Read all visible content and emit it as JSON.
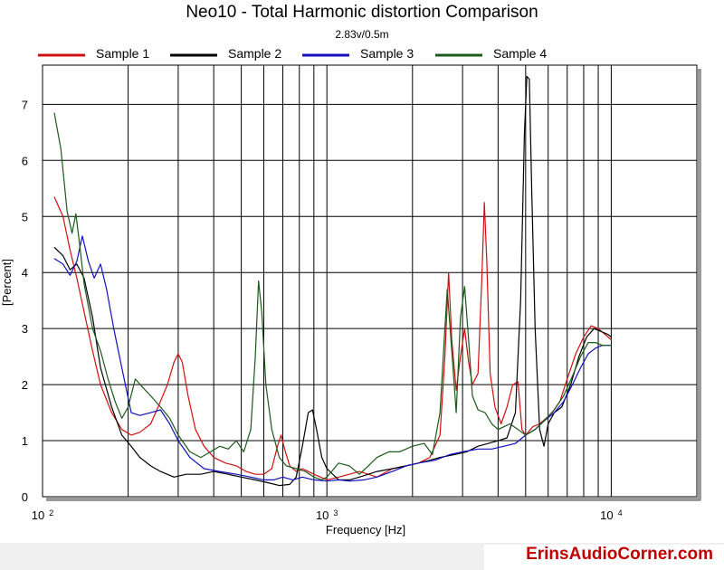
{
  "chart_data": {
    "type": "line",
    "title": "Neo10 - Total Harmonic distortion Comparison",
    "subtitle": "2.83v/0.5m",
    "xlabel": "Frequency [Hz]",
    "ylabel": "[Percent]",
    "xscale": "log",
    "xlim": [
      100,
      20000
    ],
    "ylim": [
      0,
      7.7
    ],
    "x_ticks": [
      {
        "value": 100,
        "base": "10",
        "exp": "2"
      },
      {
        "value": 1000,
        "base": "10",
        "exp": "3"
      },
      {
        "value": 10000,
        "base": "10",
        "exp": "4"
      }
    ],
    "y_ticks": [
      0,
      1,
      2,
      3,
      4,
      5,
      6,
      7
    ],
    "grid": true,
    "legend_position": "top",
    "series": [
      {
        "name": "Sample 1",
        "color": "#d01010",
        "points": [
          [
            110,
            5.35
          ],
          [
            118,
            5.0
          ],
          [
            125,
            4.4
          ],
          [
            132,
            3.9
          ],
          [
            140,
            3.3
          ],
          [
            150,
            2.6
          ],
          [
            160,
            2.0
          ],
          [
            175,
            1.5
          ],
          [
            190,
            1.2
          ],
          [
            205,
            1.1
          ],
          [
            220,
            1.15
          ],
          [
            240,
            1.3
          ],
          [
            255,
            1.6
          ],
          [
            275,
            2.0
          ],
          [
            290,
            2.4
          ],
          [
            300,
            2.55
          ],
          [
            310,
            2.4
          ],
          [
            325,
            1.8
          ],
          [
            345,
            1.2
          ],
          [
            370,
            0.9
          ],
          [
            400,
            0.7
          ],
          [
            440,
            0.6
          ],
          [
            480,
            0.55
          ],
          [
            520,
            0.45
          ],
          [
            560,
            0.4
          ],
          [
            600,
            0.4
          ],
          [
            640,
            0.5
          ],
          [
            670,
            0.9
          ],
          [
            690,
            1.1
          ],
          [
            710,
            0.85
          ],
          [
            740,
            0.55
          ],
          [
            780,
            0.45
          ],
          [
            820,
            0.5
          ],
          [
            860,
            0.45
          ],
          [
            900,
            0.4
          ],
          [
            950,
            0.35
          ],
          [
            1000,
            0.3
          ],
          [
            1100,
            0.35
          ],
          [
            1200,
            0.4
          ],
          [
            1300,
            0.45
          ],
          [
            1400,
            0.4
          ],
          [
            1500,
            0.35
          ],
          [
            1700,
            0.5
          ],
          [
            1900,
            0.55
          ],
          [
            2100,
            0.6
          ],
          [
            2300,
            0.7
          ],
          [
            2500,
            1.1
          ],
          [
            2600,
            2.5
          ],
          [
            2680,
            4.0
          ],
          [
            2750,
            2.8
          ],
          [
            2850,
            1.9
          ],
          [
            2950,
            2.5
          ],
          [
            3050,
            3.0
          ],
          [
            3150,
            2.4
          ],
          [
            3250,
            2.0
          ],
          [
            3400,
            2.2
          ],
          [
            3500,
            3.8
          ],
          [
            3580,
            5.25
          ],
          [
            3650,
            4.2
          ],
          [
            3750,
            2.2
          ],
          [
            3900,
            1.6
          ],
          [
            4100,
            1.3
          ],
          [
            4300,
            1.6
          ],
          [
            4500,
            2.0
          ],
          [
            4700,
            2.05
          ],
          [
            4850,
            1.2
          ],
          [
            5000,
            1.1
          ],
          [
            5300,
            1.25
          ],
          [
            5600,
            1.3
          ],
          [
            5900,
            1.4
          ],
          [
            6200,
            1.5
          ],
          [
            6600,
            1.7
          ],
          [
            7000,
            2.1
          ],
          [
            7500,
            2.55
          ],
          [
            8000,
            2.85
          ],
          [
            8500,
            3.05
          ],
          [
            9000,
            3.0
          ],
          [
            9500,
            2.9
          ],
          [
            10000,
            2.8
          ]
        ]
      },
      {
        "name": "Sample 2",
        "color": "#000000",
        "points": [
          [
            110,
            4.45
          ],
          [
            118,
            4.3
          ],
          [
            125,
            4.05
          ],
          [
            132,
            4.15
          ],
          [
            140,
            3.9
          ],
          [
            150,
            3.2
          ],
          [
            160,
            2.3
          ],
          [
            175,
            1.6
          ],
          [
            190,
            1.1
          ],
          [
            205,
            0.9
          ],
          [
            220,
            0.7
          ],
          [
            240,
            0.55
          ],
          [
            260,
            0.45
          ],
          [
            290,
            0.35
          ],
          [
            320,
            0.4
          ],
          [
            360,
            0.4
          ],
          [
            400,
            0.45
          ],
          [
            450,
            0.4
          ],
          [
            500,
            0.35
          ],
          [
            560,
            0.3
          ],
          [
            620,
            0.25
          ],
          [
            680,
            0.2
          ],
          [
            740,
            0.22
          ],
          [
            780,
            0.35
          ],
          [
            820,
            0.9
          ],
          [
            860,
            1.5
          ],
          [
            890,
            1.55
          ],
          [
            920,
            1.2
          ],
          [
            960,
            0.7
          ],
          [
            1000,
            0.5
          ],
          [
            1100,
            0.3
          ],
          [
            1200,
            0.3
          ],
          [
            1300,
            0.35
          ],
          [
            1400,
            0.4
          ],
          [
            1500,
            0.45
          ],
          [
            1700,
            0.5
          ],
          [
            1900,
            0.55
          ],
          [
            2100,
            0.6
          ],
          [
            2300,
            0.65
          ],
          [
            2500,
            0.7
          ],
          [
            2800,
            0.75
          ],
          [
            3100,
            0.8
          ],
          [
            3400,
            0.9
          ],
          [
            3700,
            0.95
          ],
          [
            4000,
            1.0
          ],
          [
            4300,
            1.05
          ],
          [
            4600,
            1.5
          ],
          [
            4800,
            3.5
          ],
          [
            4950,
            6.5
          ],
          [
            5050,
            7.5
          ],
          [
            5150,
            7.45
          ],
          [
            5250,
            5.5
          ],
          [
            5400,
            3.0
          ],
          [
            5600,
            1.2
          ],
          [
            5800,
            0.9
          ],
          [
            6000,
            1.3
          ],
          [
            6300,
            1.5
          ],
          [
            6700,
            1.6
          ],
          [
            7200,
            2.0
          ],
          [
            7700,
            2.5
          ],
          [
            8200,
            2.85
          ],
          [
            8700,
            3.0
          ],
          [
            9200,
            2.95
          ],
          [
            9700,
            2.9
          ],
          [
            10000,
            2.85
          ]
        ]
      },
      {
        "name": "Sample 3",
        "color": "#1010c0",
        "points": [
          [
            110,
            4.25
          ],
          [
            118,
            4.15
          ],
          [
            125,
            3.95
          ],
          [
            132,
            4.2
          ],
          [
            138,
            4.65
          ],
          [
            145,
            4.2
          ],
          [
            152,
            3.9
          ],
          [
            160,
            4.15
          ],
          [
            168,
            3.7
          ],
          [
            178,
            3.0
          ],
          [
            190,
            2.3
          ],
          [
            205,
            1.5
          ],
          [
            220,
            1.45
          ],
          [
            240,
            1.5
          ],
          [
            260,
            1.55
          ],
          [
            280,
            1.3
          ],
          [
            300,
            1.0
          ],
          [
            330,
            0.7
          ],
          [
            370,
            0.5
          ],
          [
            420,
            0.45
          ],
          [
            480,
            0.4
          ],
          [
            540,
            0.35
          ],
          [
            600,
            0.3
          ],
          [
            650,
            0.3
          ],
          [
            700,
            0.35
          ],
          [
            760,
            0.3
          ],
          [
            820,
            0.35
          ],
          [
            900,
            0.3
          ],
          [
            1000,
            0.28
          ],
          [
            1100,
            0.3
          ],
          [
            1200,
            0.28
          ],
          [
            1350,
            0.3
          ],
          [
            1500,
            0.35
          ],
          [
            1700,
            0.45
          ],
          [
            1900,
            0.55
          ],
          [
            2100,
            0.6
          ],
          [
            2400,
            0.65
          ],
          [
            2700,
            0.75
          ],
          [
            3000,
            0.8
          ],
          [
            3400,
            0.85
          ],
          [
            3800,
            0.85
          ],
          [
            4200,
            0.9
          ],
          [
            4600,
            0.95
          ],
          [
            5000,
            1.1
          ],
          [
            5400,
            1.2
          ],
          [
            5800,
            1.35
          ],
          [
            6300,
            1.5
          ],
          [
            6800,
            1.7
          ],
          [
            7300,
            2.0
          ],
          [
            7800,
            2.3
          ],
          [
            8300,
            2.55
          ],
          [
            8800,
            2.65
          ],
          [
            9300,
            2.7
          ],
          [
            10000,
            2.7
          ]
        ]
      },
      {
        "name": "Sample 4",
        "color": "#1a5a1a",
        "points": [
          [
            110,
            6.85
          ],
          [
            116,
            6.2
          ],
          [
            122,
            5.1
          ],
          [
            127,
            4.7
          ],
          [
            131,
            5.05
          ],
          [
            135,
            4.5
          ],
          [
            140,
            3.8
          ],
          [
            150,
            3.0
          ],
          [
            160,
            2.6
          ],
          [
            170,
            2.1
          ],
          [
            180,
            1.7
          ],
          [
            190,
            1.4
          ],
          [
            200,
            1.6
          ],
          [
            212,
            2.1
          ],
          [
            225,
            1.95
          ],
          [
            240,
            1.8
          ],
          [
            260,
            1.6
          ],
          [
            280,
            1.4
          ],
          [
            300,
            1.1
          ],
          [
            330,
            0.8
          ],
          [
            360,
            0.7
          ],
          [
            390,
            0.8
          ],
          [
            420,
            0.9
          ],
          [
            450,
            0.85
          ],
          [
            480,
            1.0
          ],
          [
            510,
            0.8
          ],
          [
            540,
            1.2
          ],
          [
            560,
            2.5
          ],
          [
            575,
            3.85
          ],
          [
            590,
            3.3
          ],
          [
            610,
            2.0
          ],
          [
            640,
            1.2
          ],
          [
            680,
            0.7
          ],
          [
            720,
            0.55
          ],
          [
            780,
            0.5
          ],
          [
            840,
            0.45
          ],
          [
            900,
            0.35
          ],
          [
            960,
            0.3
          ],
          [
            1000,
            0.35
          ],
          [
            1100,
            0.6
          ],
          [
            1200,
            0.55
          ],
          [
            1300,
            0.4
          ],
          [
            1400,
            0.55
          ],
          [
            1500,
            0.7
          ],
          [
            1650,
            0.8
          ],
          [
            1800,
            0.8
          ],
          [
            2000,
            0.9
          ],
          [
            2200,
            0.95
          ],
          [
            2350,
            0.75
          ],
          [
            2500,
            1.5
          ],
          [
            2600,
            3.0
          ],
          [
            2650,
            3.7
          ],
          [
            2750,
            2.6
          ],
          [
            2850,
            1.5
          ],
          [
            2950,
            3.2
          ],
          [
            3050,
            3.75
          ],
          [
            3150,
            2.8
          ],
          [
            3250,
            1.8
          ],
          [
            3400,
            1.55
          ],
          [
            3600,
            1.5
          ],
          [
            3800,
            1.3
          ],
          [
            4000,
            1.2
          ],
          [
            4200,
            1.25
          ],
          [
            4400,
            1.3
          ],
          [
            4700,
            1.2
          ],
          [
            5000,
            1.1
          ],
          [
            5400,
            1.2
          ],
          [
            5800,
            1.35
          ],
          [
            6300,
            1.55
          ],
          [
            6800,
            1.8
          ],
          [
            7300,
            2.15
          ],
          [
            7800,
            2.5
          ],
          [
            8300,
            2.75
          ],
          [
            8800,
            2.75
          ],
          [
            9300,
            2.7
          ],
          [
            10000,
            2.7
          ]
        ]
      }
    ]
  },
  "brand": "ErinsAudioCorner.com"
}
